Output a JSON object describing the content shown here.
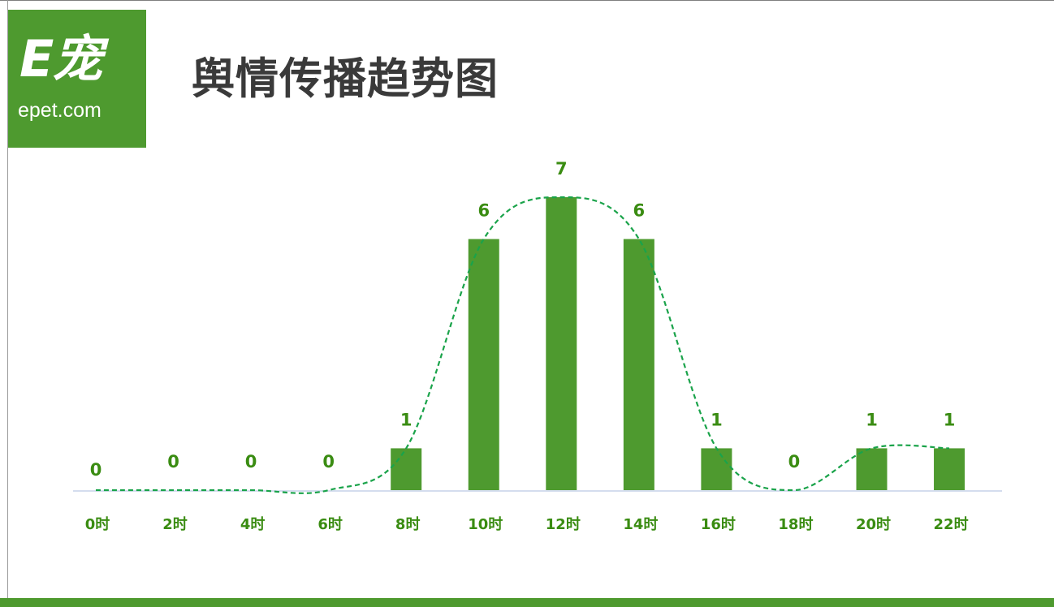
{
  "logo": {
    "glyph": "E宠",
    "domain": "epet.com"
  },
  "title": "舆情传播趋势图",
  "colors": {
    "brand": "#4e9a2f",
    "bar": "#4e9a2f",
    "trend_line": "#1aa34a",
    "label": "#3a8c12",
    "axis": "#c5d2e8",
    "title": "#3a3a3a"
  },
  "chart_data": {
    "type": "bar",
    "categories": [
      "0时",
      "2时",
      "4时",
      "6时",
      "8时",
      "10时",
      "12时",
      "14时",
      "16时",
      "18时",
      "20时",
      "22时"
    ],
    "values": [
      0,
      0,
      0,
      0,
      1,
      6,
      7,
      6,
      1,
      0,
      1,
      1
    ],
    "trendline": "smoothed dashed curve through values",
    "data_labels": true,
    "ylim": [
      0,
      7
    ],
    "grid": false,
    "legend": "none"
  }
}
